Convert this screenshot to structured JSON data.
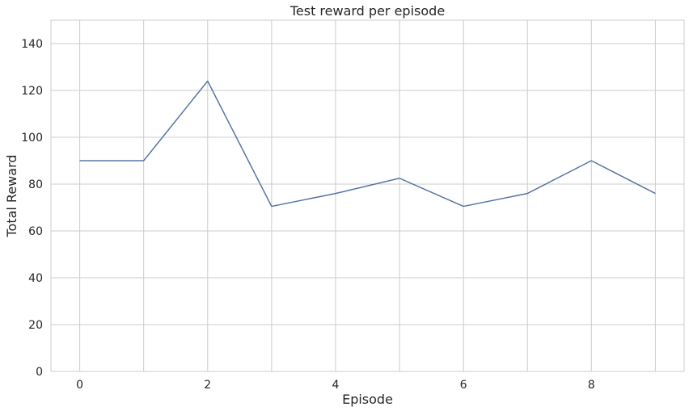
{
  "chart_data": {
    "type": "line",
    "title": "Test reward per episode",
    "xlabel": "Episode",
    "ylabel": "Total Reward",
    "xlim": [
      -0.45,
      9.45
    ],
    "ylim": [
      0,
      150
    ],
    "xticks": [
      0,
      2,
      4,
      6,
      8
    ],
    "yticks": [
      0,
      20,
      40,
      60,
      80,
      100,
      120,
      140
    ],
    "grid": true,
    "legend": "none",
    "series": [
      {
        "color": "#5875a4",
        "x": [
          0,
          1,
          2,
          3,
          4,
          5,
          6,
          7,
          8,
          9
        ],
        "y": [
          90,
          90,
          124,
          70.5,
          76,
          82.5,
          70.5,
          76,
          90,
          76
        ]
      }
    ]
  },
  "colors": {
    "background": "#ffffff",
    "grid": "#cccccc",
    "text": "#262626"
  }
}
